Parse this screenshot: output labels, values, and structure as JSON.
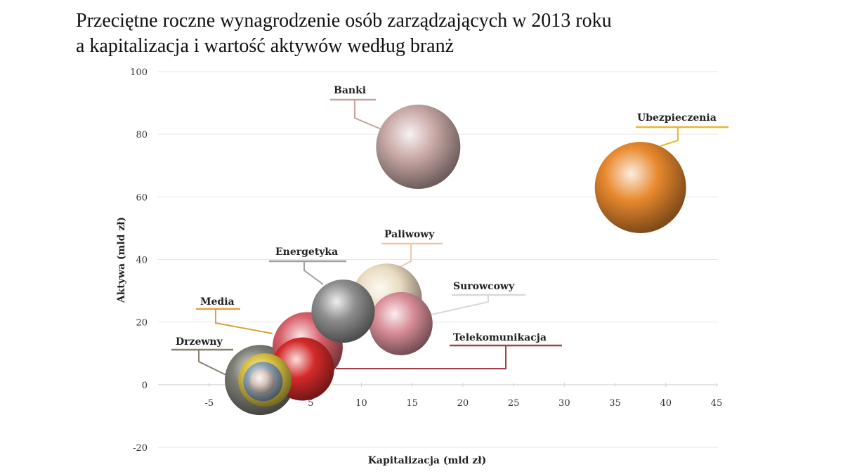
{
  "chart_data": {
    "type": "bubble",
    "title_line1": "Przeciętne roczne wynagrodzenie osób zarządzających w 2013 roku",
    "title_line2": "a kapitalizacja i wartość aktywów według branż",
    "xlabel": "Kapitalizacja (mld zł)",
    "ylabel": "Aktywa (mld zł)",
    "xlim": [
      -10,
      45
    ],
    "ylim": [
      -20,
      100
    ],
    "xticks": [
      -5,
      0,
      5,
      10,
      15,
      20,
      25,
      30,
      35,
      40,
      45
    ],
    "yticks": [
      -20,
      0,
      20,
      40,
      60,
      80,
      100
    ],
    "grid": "horizontal",
    "series": [
      {
        "name": "Banki",
        "x": 15.6,
        "y": 76,
        "size": 60,
        "color": "#c9a9a6"
      },
      {
        "name": "Ubezpieczenia",
        "x": 37.5,
        "y": 63,
        "size": 65,
        "color": "#e8892e"
      },
      {
        "name": "Paliwowy",
        "x": 12.5,
        "y": 27.5,
        "size": 50,
        "color": "#eadcc0"
      },
      {
        "name": "Surowcowy",
        "x": 13.9,
        "y": 19.5,
        "size": 45,
        "color": "#d98e98"
      },
      {
        "name": "Energetyka",
        "x": 8.2,
        "y": 23.5,
        "size": 45,
        "color": "#8e8e8e"
      },
      {
        "name": "Media",
        "x": 4.7,
        "y": 12,
        "size": 50,
        "color": "#d8606a"
      },
      {
        "name": "Telekomunikacja",
        "x": 4.2,
        "y": 5,
        "size": 45,
        "color": "#d42a2a"
      },
      {
        "name": "Drzewny",
        "x": 0,
        "y": 1.5,
        "size": 50,
        "color": "#7d7d76"
      }
    ],
    "unlabeled_bubbles": [
      {
        "x": 0.5,
        "y": 1.5,
        "size": 38,
        "color": "#d8c040"
      },
      {
        "x": 0.3,
        "y": 1,
        "size": 28,
        "color": "#8aa0b0"
      },
      {
        "x": 0.2,
        "y": 1,
        "size": 18,
        "color": "#d8c8c0"
      }
    ]
  }
}
